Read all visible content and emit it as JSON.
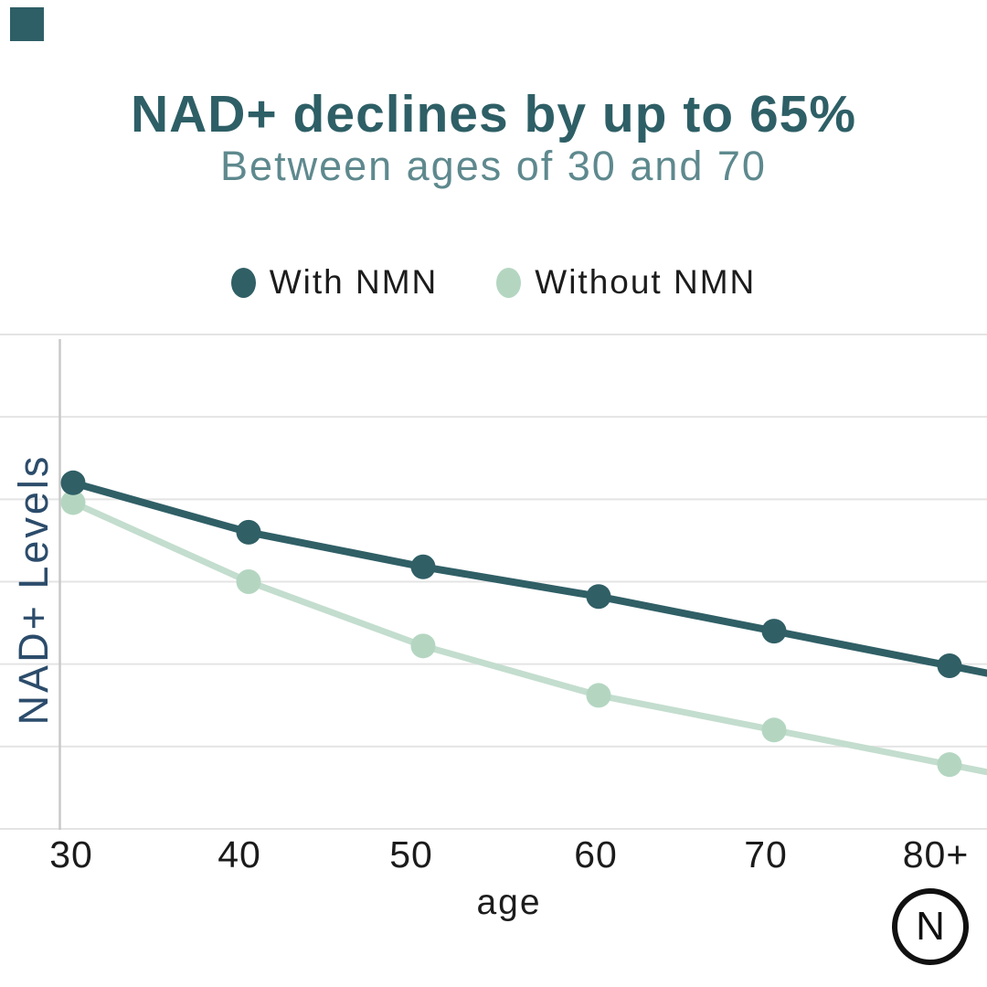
{
  "page": {
    "background": "#ffffff"
  },
  "brand": {
    "corner_mark_color": "#2e5f66",
    "logo": {
      "letter": "N",
      "circle_color": "#111111"
    }
  },
  "header": {
    "title": "NAD+ declines by up to 65%",
    "title_color": "#2e5f66",
    "subtitle": "Between ages of 30 and 70",
    "subtitle_color": "#5e898e"
  },
  "legend": {
    "items": [
      {
        "label": "With NMN",
        "color": "#305f66"
      },
      {
        "label": "Without NMN",
        "color": "#b4d6c1"
      }
    ],
    "text_color": "#1c1c1c"
  },
  "chart_data": {
    "type": "line",
    "title": "NAD+ declines by up to 65%",
    "subtitle": "Between ages of 30 and 70",
    "xlabel": "age",
    "ylabel": "NAD+ Levels",
    "ylabel_color": "#2c4c6b",
    "categories": [
      "30",
      "40",
      "50",
      "60",
      "70",
      "80+"
    ],
    "series": [
      {
        "name": "With NMN",
        "values": [
          70,
          60,
          53,
          47,
          40,
          33
        ],
        "dot_color": "#305f66",
        "line_color": "#305f66",
        "line_width": 8,
        "dot_radius": 13.5
      },
      {
        "name": "Without NMN",
        "values": [
          66,
          50,
          37,
          27,
          20,
          13
        ],
        "dot_color": "#b4d6c1",
        "line_color": "#c3ddce",
        "line_width": 7,
        "dot_radius": 13.5
      }
    ],
    "ylim": [
      0,
      100
    ],
    "grid": "horizontal",
    "gridline_count": 7,
    "gridline_color": "#e4e4e4",
    "axis_line_color": "#c8c8c8",
    "tick_color": "#1b1b1b",
    "legend_position": "top"
  }
}
